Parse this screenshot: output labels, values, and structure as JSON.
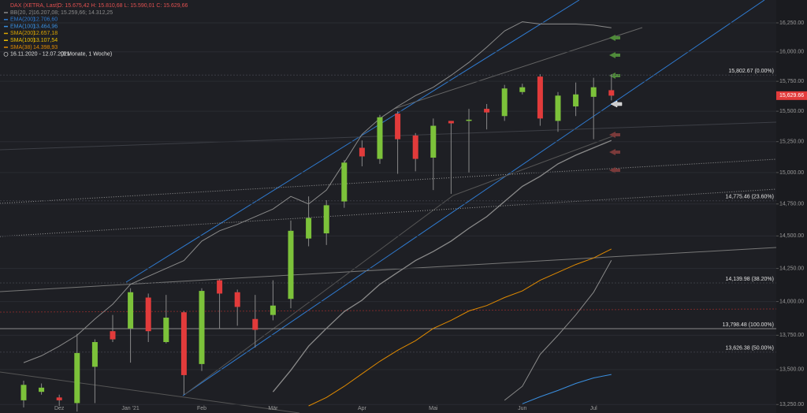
{
  "chart_data": {
    "type": "candlestick",
    "header": {
      "title": "DAX (XETRA, Last)",
      "ohlc": "O: 15.675,42  H: 15.810,68  L: 15.590,01  C: 15.629,66",
      "range": "16.11.2020 - 12.07.2021",
      "span": "(8 Monate, 1 Woche)"
    },
    "categories": [
      null,
      null,
      "Dez",
      null,
      null,
      null,
      "Jan '21",
      null,
      null,
      null,
      "Feb",
      null,
      null,
      null,
      "Mär",
      null,
      null,
      null,
      null,
      "Apr",
      null,
      null,
      null,
      "Mai",
      null,
      null,
      null,
      null,
      "Jun",
      null,
      null,
      null,
      "Jul",
      null
    ],
    "open": [
      13280,
      13340,
      13300,
      13260,
      13520,
      13780,
      13800,
      14030,
      13700,
      13920,
      13540,
      14160,
      14070,
      13870,
      13900,
      14020,
      14480,
      14520,
      14770,
      15200,
      15110,
      15480,
      15300,
      15120,
      15420,
      15420,
      15520,
      15460,
      15660,
      15790,
      15420,
      15540,
      15620,
      15675.42
    ],
    "high": [
      13420,
      13400,
      13320,
      13760,
      13720,
      13900,
      14100,
      14060,
      14050,
      13930,
      14100,
      14170,
      14090,
      14050,
      14160,
      14620,
      14810,
      14780,
      15100,
      15260,
      15470,
      15500,
      15320,
      15440,
      15420,
      15520,
      15560,
      15720,
      15730,
      15810,
      15660,
      15740,
      15780,
      15810.68
    ],
    "low": [
      13230,
      13320,
      13240,
      13200,
      13260,
      13700,
      13550,
      13700,
      13690,
      13320,
      13490,
      13800,
      13820,
      13660,
      13860,
      13950,
      14420,
      14430,
      14720,
      15050,
      15070,
      14990,
      15010,
      14860,
      14830,
      15000,
      15350,
      15420,
      15640,
      15380,
      15330,
      15460,
      15270,
      15590.01
    ],
    "close": [
      13390,
      13370,
      13280,
      13620,
      13700,
      13720,
      14070,
      13780,
      13880,
      13460,
      14080,
      14060,
      13960,
      13790,
      13970,
      14540,
      14640,
      14740,
      15080,
      15130,
      15450,
      15270,
      15110,
      15380,
      15400,
      15430,
      15490,
      15690,
      15700,
      15440,
      15630,
      15640,
      15700,
      15629.66
    ],
    "up_color": "#7cc23a",
    "down_color": "#e23b3b",
    "indicators": [
      {
        "name": "BB(20, 2)",
        "value": "16.207,08; 15.259,66; 14.312,25",
        "color": "#8a8a8a",
        "lines": [
          [
            13550,
            13600,
            13670,
            13750,
            13870,
            13980,
            14130,
            14190,
            14250,
            14310,
            14460,
            14540,
            14590,
            14650,
            14710,
            14810,
            14750,
            14860,
            15080,
            15310,
            15440,
            15540,
            15630,
            15700,
            15800,
            15910,
            16040,
            16180,
            16260,
            16240,
            16240,
            16240,
            16230,
            16207.08
          ],
          [
            null,
            null,
            null,
            null,
            null,
            null,
            null,
            null,
            null,
            null,
            null,
            null,
            null,
            null,
            13340,
            13495,
            13670,
            13800,
            13925,
            14010,
            14130,
            14220,
            14310,
            14380,
            14460,
            14560,
            14650,
            14770,
            14890,
            14970,
            15070,
            15140,
            15200,
            15259.66
          ],
          [
            null,
            null,
            null,
            null,
            null,
            null,
            null,
            null,
            null,
            null,
            null,
            null,
            null,
            null,
            null,
            null,
            null,
            null,
            null,
            null,
            null,
            null,
            null,
            null,
            null,
            null,
            null,
            13280,
            13380,
            13610,
            13750,
            13900,
            14070,
            14312.25
          ]
        ]
      },
      {
        "name": "EMA(200)",
        "value": "12.706,60",
        "color": "#2f7bd1",
        "lines": []
      },
      {
        "name": "EMA(100)",
        "value": "13.464,96",
        "color": "#3a8fe0",
        "lines": [
          [
            null,
            null,
            null,
            null,
            null,
            null,
            null,
            null,
            null,
            null,
            null,
            null,
            null,
            null,
            null,
            null,
            null,
            null,
            null,
            null,
            null,
            null,
            null,
            null,
            null,
            null,
            null,
            null,
            13255,
            13305,
            13350,
            13400,
            13440,
            13464.96
          ]
        ]
      },
      {
        "name": "SMA(200)",
        "value": "12.657,18",
        "color": "#d9a400",
        "lines": []
      },
      {
        "name": "SMA(100)",
        "value": "13.107,54",
        "color": "#f0c000",
        "lines": []
      },
      {
        "name": "SMA(38)",
        "value": "14.398,93",
        "color": "#e08a00",
        "lines": [
          [
            null,
            null,
            null,
            null,
            null,
            null,
            null,
            null,
            null,
            null,
            null,
            null,
            null,
            null,
            null,
            null,
            13240,
            13300,
            13380,
            13470,
            13560,
            13640,
            13710,
            13800,
            13860,
            13930,
            13970,
            14030,
            14080,
            14160,
            14220,
            14280,
            14330,
            14398.93
          ]
        ]
      }
    ],
    "fib_levels": [
      {
        "value": 15802.67,
        "label": "15,802.67 (0.00%)"
      },
      {
        "value": 14775.46,
        "label": "14,775.46 (23.60%)"
      },
      {
        "value": 14139.98,
        "label": "14,139.98 (38.20%)"
      },
      {
        "value": 13798.48,
        "label": "13,798.48 (100.00%)"
      },
      {
        "value": 13626.38,
        "label": "13,626.38 (50.00%)"
      }
    ],
    "last_price": {
      "value": 15629.66,
      "label": "15,629.66"
    },
    "log_scale": true,
    "grid": true,
    "ylim": [
      13190,
      16450
    ],
    "yticks": [
      {
        "value": 13250,
        "label": "13,250.00"
      },
      {
        "value": 13500,
        "label": "13,500.00"
      },
      {
        "value": 13750,
        "label": "13,750.00"
      },
      {
        "value": 14000,
        "label": "14,000.00"
      },
      {
        "value": 14250,
        "label": "14,250.00"
      },
      {
        "value": 14500,
        "label": "14,500.00"
      },
      {
        "value": 14750,
        "label": "14,750.00"
      },
      {
        "value": 15000,
        "label": "15,000.00"
      },
      {
        "value": 15250,
        "label": "15,250.00"
      },
      {
        "value": 15500,
        "label": "15,500.00"
      },
      {
        "value": 15750,
        "label": "15,750.00"
      },
      {
        "value": 16000,
        "label": "16,000.00"
      },
      {
        "value": 16250,
        "label": "16,250.00"
      }
    ]
  }
}
